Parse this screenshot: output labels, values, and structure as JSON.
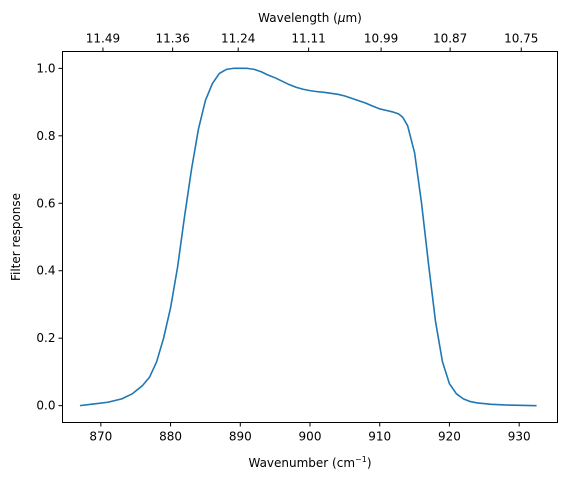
{
  "chart_data": {
    "type": "line",
    "xlabel": "Wavenumber (cm",
    "xlabel_sup": "−1",
    "xlabel_close": ")",
    "ylabel": "Filter response",
    "top_xlabel": "Wavelength (",
    "top_xlabel_mu": "μ",
    "top_xlabel_unit": "m)",
    "xlim": [
      864.5,
      935.5
    ],
    "ylim": [
      -0.05,
      1.05
    ],
    "xticks": [
      870,
      880,
      890,
      900,
      910,
      920,
      930
    ],
    "yticks": [
      0.0,
      0.2,
      0.4,
      0.6,
      0.8,
      1.0
    ],
    "ytick_labels": [
      "0.0",
      "0.2",
      "0.4",
      "0.6",
      "0.8",
      "1.0"
    ],
    "top_ticks": [
      {
        "at": 870.3,
        "label": "11.49"
      },
      {
        "at": 880.3,
        "label": "11.36"
      },
      {
        "at": 889.7,
        "label": "11.24"
      },
      {
        "at": 899.8,
        "label": "11.11"
      },
      {
        "at": 910.2,
        "label": "10.99"
      },
      {
        "at": 920.1,
        "label": "10.87"
      },
      {
        "at": 930.3,
        "label": "10.75"
      }
    ],
    "series": [
      {
        "color": "#1f77b4",
        "x": [
          867.0,
          869.0,
          871.0,
          873.0,
          874.5,
          876.0,
          877.0,
          878.0,
          879.0,
          880.0,
          881.0,
          882.0,
          883.0,
          884.0,
          885.0,
          886.0,
          887.0,
          888.0,
          889.0,
          890.0,
          891.0,
          892.0,
          893.0,
          894.0,
          895.0,
          896.0,
          897.0,
          898.0,
          899.0,
          900.0,
          901.0,
          902.0,
          903.0,
          904.0,
          905.0,
          906.0,
          907.0,
          908.0,
          909.0,
          910.0,
          911.0,
          912.0,
          912.7,
          913.3,
          914.0,
          915.0,
          916.0,
          917.0,
          918.0,
          919.0,
          920.0,
          921.0,
          922.0,
          923.0,
          924.0,
          926.0,
          928.0,
          930.0,
          932.5
        ],
        "y": [
          0.0,
          0.005,
          0.01,
          0.02,
          0.035,
          0.06,
          0.085,
          0.13,
          0.2,
          0.29,
          0.41,
          0.56,
          0.7,
          0.82,
          0.905,
          0.955,
          0.985,
          0.997,
          1.0,
          1.0,
          1.0,
          0.997,
          0.99,
          0.98,
          0.972,
          0.962,
          0.952,
          0.944,
          0.938,
          0.934,
          0.931,
          0.929,
          0.926,
          0.923,
          0.918,
          0.911,
          0.904,
          0.897,
          0.888,
          0.88,
          0.875,
          0.87,
          0.865,
          0.855,
          0.83,
          0.75,
          0.6,
          0.42,
          0.25,
          0.13,
          0.065,
          0.035,
          0.02,
          0.012,
          0.008,
          0.004,
          0.002,
          0.001,
          0.0
        ]
      }
    ]
  }
}
